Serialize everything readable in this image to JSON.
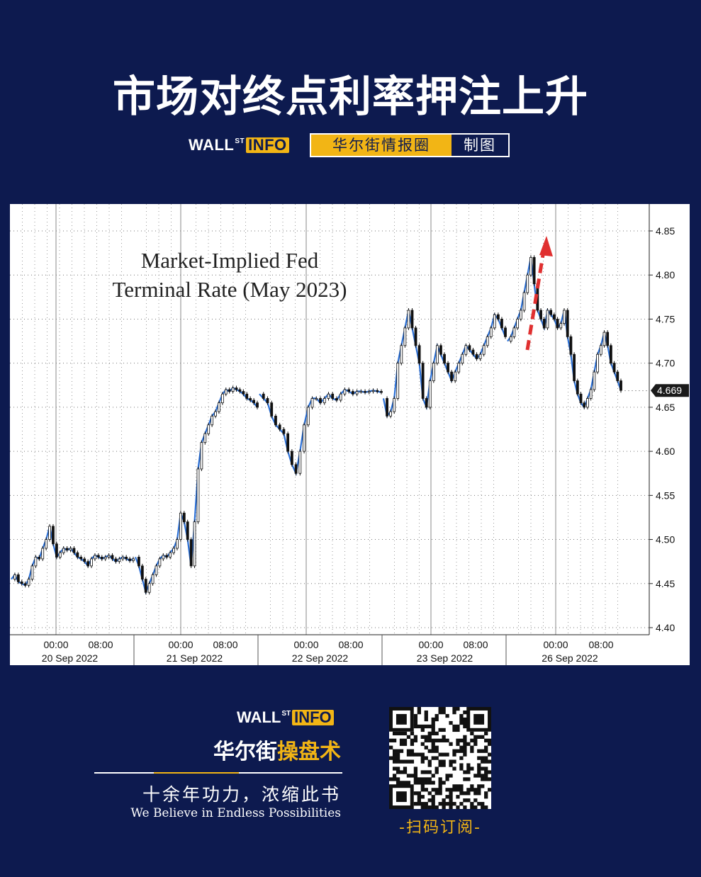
{
  "headline": "市场对终点利率押注上升",
  "brand": {
    "logo_main": "WALL",
    "logo_sup": "ST",
    "logo_info": "INFO",
    "tag_left": "华尔街情报圈",
    "tag_right": "制图"
  },
  "colors": {
    "background": "#0d1a4f",
    "accent_gold": "#f2b515",
    "series_blue": "#2a6fd6",
    "candle_dark": "#111111",
    "arrow_red": "#e03030"
  },
  "chart_data": {
    "type": "line",
    "title_lines": [
      "Market-Implied Fed",
      "Terminal Rate (May 2023)"
    ],
    "ylim": [
      4.4,
      4.85
    ],
    "yticks": [
      "4.40",
      "4.45",
      "4.50",
      "4.55",
      "4.60",
      "4.65",
      "4.70",
      "4.75",
      "4.80",
      "4.85"
    ],
    "last_value_label": "4.669",
    "x_tick_labels": [
      "00:00",
      "08:00",
      "00:00",
      "08:00",
      "00:00",
      "08:00",
      "00:00",
      "08:00",
      "00:00",
      "08:00"
    ],
    "date_labels": [
      "20 Sep 2022",
      "21 Sep 2022",
      "22 Sep 2022",
      "23 Sep 2022",
      "26 Sep 2022"
    ],
    "grid": true,
    "annotation": "red dashed upward arrow near 26 Sep 00:00",
    "days": [
      {
        "label": "20 Sep 2022",
        "points": [
          4.455,
          4.46,
          4.452,
          4.45,
          4.448,
          4.455,
          4.47,
          4.48,
          4.478,
          4.49,
          4.5,
          4.515,
          4.495,
          4.48,
          4.485,
          4.49,
          4.488,
          4.49,
          4.485,
          4.48,
          4.478,
          4.475,
          4.47,
          4.478,
          4.482,
          4.48,
          4.478,
          4.48,
          4.482,
          4.478,
          4.475,
          4.478,
          4.48,
          4.478,
          4.476,
          4.478
        ]
      },
      {
        "label": "21 Sep 2022",
        "points": [
          4.48,
          4.47,
          4.455,
          4.44,
          4.45,
          4.46,
          4.47,
          4.478,
          4.482,
          4.48,
          4.485,
          4.49,
          4.5,
          4.53,
          4.52,
          4.5,
          4.47,
          4.52,
          4.58,
          4.61,
          4.62,
          4.63,
          4.64,
          4.645,
          4.655,
          4.665,
          4.67,
          4.668,
          4.672,
          4.67,
          4.668,
          4.665,
          4.66,
          4.658,
          4.655,
          4.65
        ]
      },
      {
        "label": "22 Sep 2022",
        "points": [
          4.665,
          4.66,
          4.655,
          4.64,
          4.63,
          4.625,
          4.62,
          4.6,
          4.585,
          4.575,
          4.6,
          4.63,
          4.65,
          4.66,
          4.66,
          4.655,
          4.66,
          4.665,
          4.66,
          4.658,
          4.665,
          4.67,
          4.668,
          4.665,
          4.668,
          4.668,
          4.667,
          4.668,
          4.669,
          4.668,
          4.667
        ]
      },
      {
        "label": "23 Sep 2022",
        "points": [
          4.66,
          4.64,
          4.645,
          4.66,
          4.7,
          4.72,
          4.74,
          4.76,
          4.74,
          4.72,
          4.7,
          4.66,
          4.65,
          4.68,
          4.7,
          4.72,
          4.71,
          4.7,
          4.69,
          4.68,
          4.69,
          4.7,
          4.71,
          4.72,
          4.715,
          4.71,
          4.705,
          4.71,
          4.72,
          4.73,
          4.74,
          4.755,
          4.75,
          4.74,
          4.73
        ]
      },
      {
        "label": "26 Sep 2022",
        "points": [
          4.725,
          4.73,
          4.74,
          4.75,
          4.76,
          4.78,
          4.8,
          4.82,
          4.79,
          4.76,
          4.75,
          4.74,
          4.76,
          4.755,
          4.75,
          4.74,
          4.745,
          4.76,
          4.73,
          4.71,
          4.68,
          4.665,
          4.655,
          4.65,
          4.66,
          4.67,
          4.69,
          4.71,
          4.72,
          4.735,
          4.72,
          4.7,
          4.69,
          4.68,
          4.669
        ]
      }
    ]
  },
  "footer": {
    "logo_main": "WALL",
    "logo_sup": "ST",
    "logo_info": "INFO",
    "brand_white": "华尔街",
    "brand_gold": "操盘术",
    "slogan": "十余年功力，浓缩此书",
    "english": "We Believe in Endless Possibilities",
    "qr_caption": "-扫码订阅-"
  }
}
